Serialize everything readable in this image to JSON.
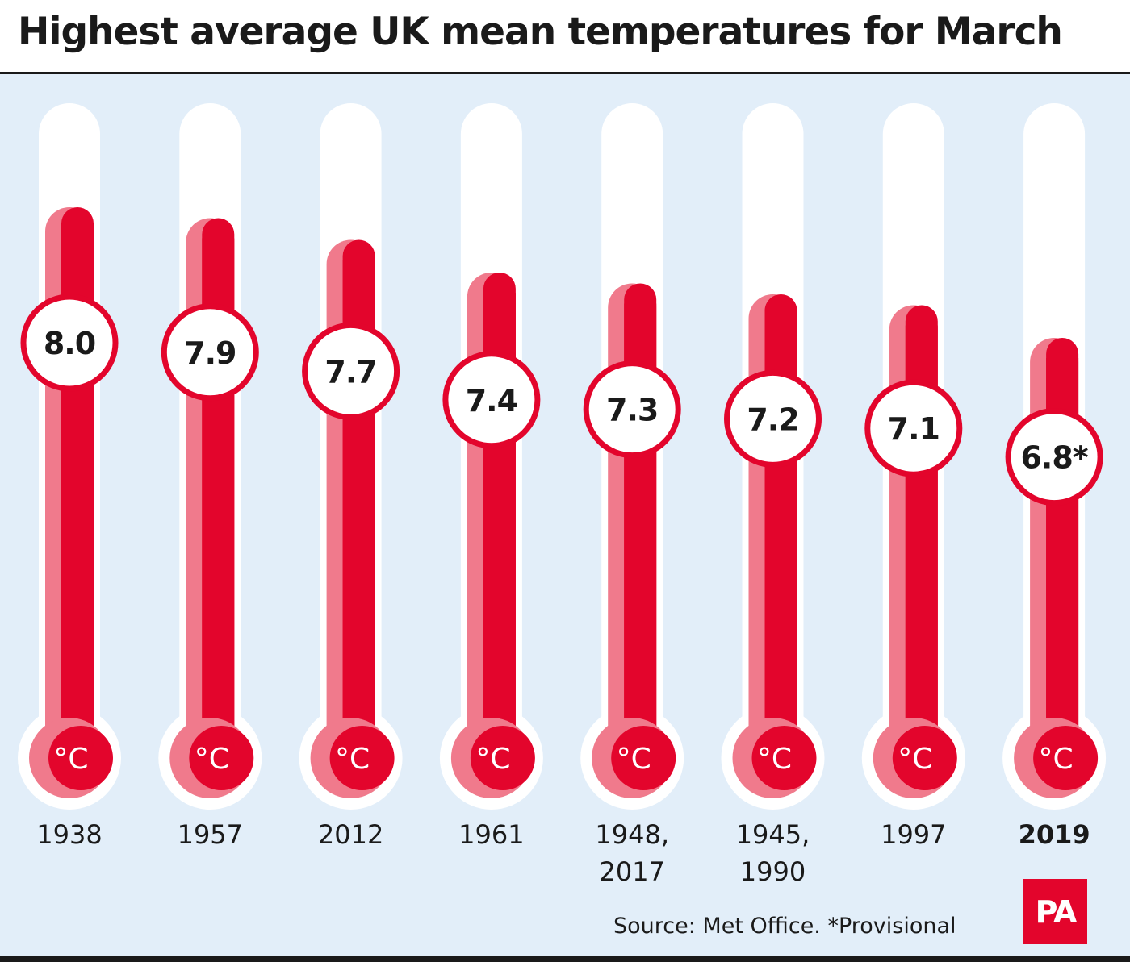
{
  "title": "Highest average UK mean temperatures for March",
  "source": "Source: Met Office. *Provisional",
  "logo": "PA",
  "colors": {
    "red": "#e3052c",
    "pink": "#f07a8c",
    "tube": "#ffffff",
    "background": "#e2eef9",
    "text": "#1a1a1a"
  },
  "chart_data": {
    "type": "bar",
    "title": "Highest average UK mean temperatures for March",
    "unit": "°C",
    "categories": [
      "1938",
      "1957",
      "2012",
      "1961",
      "1948, 2017",
      "1945, 1990",
      "1997",
      "2019"
    ],
    "category_lines": [
      [
        "1938"
      ],
      [
        "1957"
      ],
      [
        "2012"
      ],
      [
        "1961"
      ],
      [
        "1948,",
        "2017"
      ],
      [
        "1945,",
        "1990"
      ],
      [
        "1997"
      ],
      [
        "2019"
      ]
    ],
    "highlight": "2019",
    "values": [
      8.0,
      7.9,
      7.7,
      7.4,
      7.3,
      7.2,
      7.1,
      6.8
    ],
    "value_labels": [
      "8.0",
      "7.9",
      "7.7",
      "7.4",
      "7.3",
      "7.2",
      "7.1",
      "6.8*"
    ],
    "bulb_label": "°C",
    "note": "*Provisional",
    "source": "Met Office"
  }
}
